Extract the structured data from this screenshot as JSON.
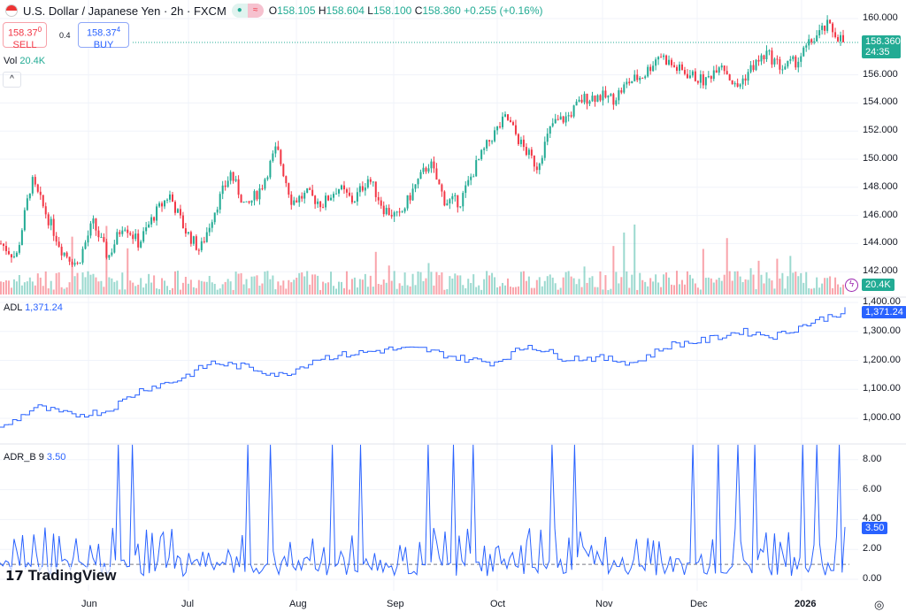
{
  "header": {
    "title": "U.S. Dollar / Japanese Yen · 2h · FXCM",
    "open_label": "O",
    "open": "158.105",
    "high_label": "H",
    "high": "158.604",
    "low_label": "L",
    "low": "158.100",
    "close_label": "C",
    "close": "158.360",
    "change": "+0.255 (+0.16%)"
  },
  "trade": {
    "sell_price": "158.37",
    "sell_sup": "0",
    "sell_label": "SELL",
    "spread": "0.4",
    "buy_price": "158.37",
    "buy_sup": "4",
    "buy_label": "BUY"
  },
  "volume": {
    "label": "Vol",
    "value": "20.4K"
  },
  "price_axis": {
    "ticks": [
      "160.000",
      "156.000",
      "154.000",
      "152.000",
      "150.000",
      "148.000",
      "146.000",
      "144.000",
      "142.000"
    ],
    "last": "158.360",
    "countdown": "24:35",
    "vol_tag": "20.4K"
  },
  "adl": {
    "label": "ADL",
    "value": "1,371.24",
    "ticks": [
      "1,400.00",
      "1,300.00",
      "1,200.00",
      "1,100.00",
      "1,000.00"
    ],
    "tag": "1,371.24"
  },
  "adr": {
    "label": "ADR_B 9",
    "value": "3.50",
    "ticks": [
      "8.00",
      "6.00",
      "4.00",
      "2.00",
      "0.00"
    ],
    "tag": "3.50",
    "spikes": [
      42,
      47,
      88,
      96,
      118,
      128,
      152,
      161,
      168,
      196,
      204,
      246,
      255,
      262,
      268,
      285,
      290,
      298
    ],
    "spike_max": 9.0
  },
  "x_axis": [
    "Jun",
    "Jul",
    "Aug",
    "Sep",
    "Oct",
    "Nov",
    "Dec",
    "2026"
  ],
  "logo": "TradingView",
  "colors": {
    "up": "#22ab94",
    "down": "#f23645",
    "line": "#2962ff"
  },
  "chart_data": {
    "type": "candlestick",
    "price_path": [
      144,
      143,
      148.5,
      146,
      143.5,
      142.5,
      145.5,
      143,
      145.5,
      144,
      146,
      147.5,
      145,
      143.5,
      146.5,
      149,
      146.5,
      148,
      150.8,
      147,
      147.5,
      146.8,
      148,
      147,
      148.7,
      146.5,
      145.8,
      148,
      149.8,
      147,
      147,
      149.5,
      151.5,
      153,
      151,
      149.5,
      152.5,
      153,
      154.3,
      154.5,
      154.3,
      155.5,
      156,
      157.5,
      156.5,
      156,
      155.5,
      157,
      155,
      156.5,
      157.5,
      156.5,
      157,
      158.5,
      159.5,
      158.36
    ],
    "adl_path": [
      963,
      1040,
      1010,
      1025,
      1100,
      1131,
      1192,
      1177,
      1147,
      1208,
      1223,
      1238,
      1238,
      1208,
      1192,
      1253,
      1208,
      1208,
      1192,
      1253,
      1269,
      1300,
      1284,
      1330,
      1371.24
    ]
  }
}
